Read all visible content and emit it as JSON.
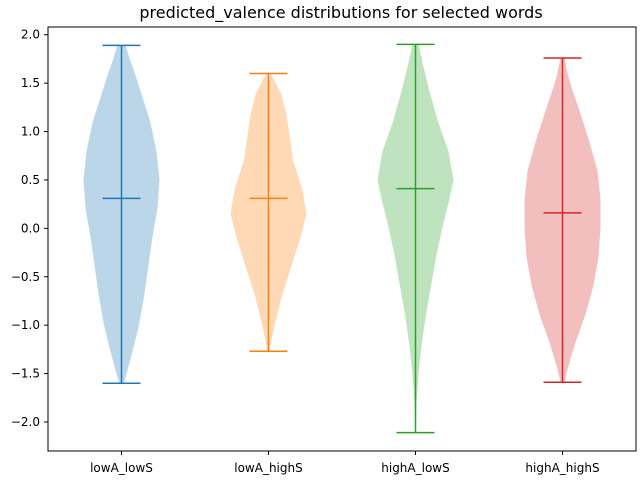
{
  "chart_data": {
    "type": "violin",
    "title": "predicted_valence distributions for selected words",
    "xlabel": "",
    "ylabel": "",
    "ylim": [
      -2.3,
      2.08
    ],
    "yticks": [
      -2.0,
      -1.5,
      -1.0,
      -0.5,
      0.0,
      0.5,
      1.0,
      1.5,
      2.0
    ],
    "ytick_labels": [
      "−2.0",
      "−1.5",
      "−1.0",
      "−0.5",
      "0.0",
      "0.5",
      "1.0",
      "1.5",
      "2.0"
    ],
    "grid": false,
    "categories": [
      "lowA_lowS",
      "lowA_highS",
      "highA_lowS",
      "highA_highS"
    ],
    "series": [
      {
        "category": "lowA_lowS",
        "color": "#1f77b4",
        "min": -1.6,
        "max": 1.89,
        "mean": 0.31,
        "density": [
          [
            -1.6,
            0.02
          ],
          [
            -1.5,
            0.05
          ],
          [
            -1.3,
            0.1
          ],
          [
            -1.0,
            0.17
          ],
          [
            -0.7,
            0.22
          ],
          [
            -0.4,
            0.26
          ],
          [
            -0.1,
            0.3
          ],
          [
            0.2,
            0.35
          ],
          [
            0.5,
            0.37
          ],
          [
            0.8,
            0.34
          ],
          [
            1.1,
            0.28
          ],
          [
            1.4,
            0.19
          ],
          [
            1.6,
            0.13
          ],
          [
            1.75,
            0.08
          ],
          [
            1.89,
            0.04
          ]
        ]
      },
      {
        "category": "lowA_highS",
        "color": "#ff7f0e",
        "min": -1.27,
        "max": 1.6,
        "mean": 0.31,
        "density": [
          [
            -1.27,
            0.01
          ],
          [
            -1.15,
            0.03
          ],
          [
            -1.0,
            0.06
          ],
          [
            -0.7,
            0.13
          ],
          [
            -0.4,
            0.22
          ],
          [
            -0.1,
            0.31
          ],
          [
            0.15,
            0.37
          ],
          [
            0.4,
            0.33
          ],
          [
            0.7,
            0.24
          ],
          [
            1.0,
            0.2
          ],
          [
            1.2,
            0.17
          ],
          [
            1.4,
            0.12
          ],
          [
            1.52,
            0.06
          ],
          [
            1.6,
            0.02
          ]
        ]
      },
      {
        "category": "highA_lowS",
        "color": "#2ca02c",
        "min": -2.11,
        "max": 1.9,
        "mean": 0.41,
        "density": [
          [
            -2.11,
            0.0
          ],
          [
            -1.8,
            0.01
          ],
          [
            -1.5,
            0.03
          ],
          [
            -1.2,
            0.06
          ],
          [
            -0.9,
            0.1
          ],
          [
            -0.6,
            0.15
          ],
          [
            -0.3,
            0.2
          ],
          [
            0.0,
            0.26
          ],
          [
            0.3,
            0.33
          ],
          [
            0.5,
            0.37
          ],
          [
            0.8,
            0.32
          ],
          [
            1.1,
            0.22
          ],
          [
            1.4,
            0.14
          ],
          [
            1.7,
            0.07
          ],
          [
            1.9,
            0.03
          ]
        ]
      },
      {
        "category": "highA_highS",
        "color": "#d62728",
        "min": -1.59,
        "max": 1.76,
        "mean": 0.16,
        "density": [
          [
            -1.59,
            0.02
          ],
          [
            -1.45,
            0.05
          ],
          [
            -1.2,
            0.12
          ],
          [
            -0.9,
            0.22
          ],
          [
            -0.6,
            0.3
          ],
          [
            -0.3,
            0.35
          ],
          [
            0.0,
            0.37
          ],
          [
            0.3,
            0.37
          ],
          [
            0.6,
            0.34
          ],
          [
            0.9,
            0.26
          ],
          [
            1.2,
            0.17
          ],
          [
            1.45,
            0.09
          ],
          [
            1.6,
            0.05
          ],
          [
            1.76,
            0.02
          ]
        ]
      }
    ]
  }
}
